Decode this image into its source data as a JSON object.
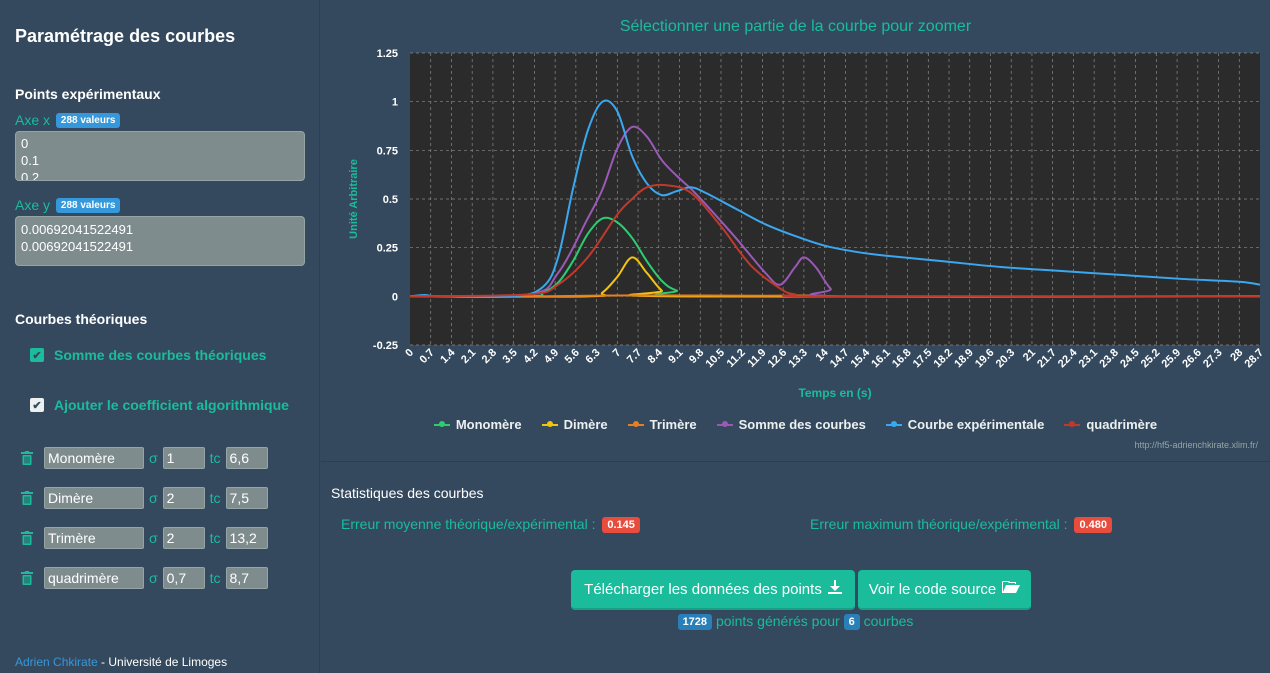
{
  "sidebar": {
    "title": "Paramétrage des courbes",
    "points_heading": "Points expérimentaux",
    "axis_x": {
      "label": "Axe x",
      "count_badge": "288 valeurs",
      "lines": [
        "0",
        "0.1",
        "0.2"
      ]
    },
    "axis_y": {
      "label": "Axe y",
      "count_badge": "288 valeurs",
      "lines": [
        "0.00692041522491",
        "0.00692041522491",
        "0.00692041522491"
      ]
    },
    "theory_heading": "Courbes théoriques",
    "sum_checkbox_label": "Somme des courbes théoriques",
    "coef_checkbox_label": "Ajouter le coefficient algorithmique",
    "sigma_symbol": "σ",
    "tc_symbol": "tc",
    "curves": [
      {
        "name": "Monomère",
        "sigma": "1",
        "tc": "6,6"
      },
      {
        "name": "Dimère",
        "sigma": "2",
        "tc": "7,5"
      },
      {
        "name": "Trimère",
        "sigma": "2",
        "tc": "13,2"
      },
      {
        "name": "quadrimère",
        "sigma": "0,7",
        "tc": "8,7"
      }
    ],
    "footer_author": "Adrien Chkirate",
    "footer_org": " - Université de Limoges"
  },
  "chart_title": "Sélectionner une partie de la courbe pour zoomer",
  "watermark": "http://hf5-adrienchkirate.xlim.fr/",
  "chart_data": {
    "type": "line",
    "xlabel": "Temps en (s)",
    "ylabel": "Unité Arbitraire",
    "xlim": [
      0,
      28.7
    ],
    "ylim": [
      -0.25,
      1.25
    ],
    "grid": true,
    "legend_position": "bottom",
    "y_ticks": [
      "-0.25",
      "0",
      "0.25",
      "0.5",
      "0.75",
      "1",
      "1.25"
    ],
    "x_ticks": [
      "0",
      "0.7",
      "1.4",
      "2.1",
      "2.8",
      "3.5",
      "4.2",
      "4.9",
      "5.6",
      "6.3",
      "7",
      "7.7",
      "8.4",
      "9.1",
      "9.8",
      "10.5",
      "11.2",
      "11.9",
      "12.6",
      "13.3",
      "14",
      "14.7",
      "15.4",
      "16.1",
      "16.8",
      "17.5",
      "18.2",
      "18.9",
      "19.6",
      "20.3",
      "21",
      "21.7",
      "22.4",
      "23.1",
      "23.8",
      "24.5",
      "25.2",
      "25.9",
      "26.6",
      "27.3",
      "28",
      "28.7"
    ],
    "series": [
      {
        "name": "Monomère",
        "color": "#2ecc71",
        "x": [
          0,
          4,
          4.5,
          5,
          5.5,
          6,
          6.5,
          7,
          7.5,
          8,
          8.5,
          9,
          10,
          28.7
        ],
        "y": [
          0,
          0,
          0.02,
          0.07,
          0.18,
          0.32,
          0.4,
          0.38,
          0.3,
          0.18,
          0.08,
          0.03,
          0,
          0
        ]
      },
      {
        "name": "Dimère",
        "color": "#f1c40f",
        "x": [
          0,
          6,
          6.5,
          7,
          7.5,
          8,
          8.5,
          9,
          28.7
        ],
        "y": [
          0,
          0,
          0.02,
          0.1,
          0.2,
          0.12,
          0.03,
          0,
          0
        ]
      },
      {
        "name": "Trimère",
        "color": "#e67e22",
        "x": [
          0,
          4,
          6,
          8,
          10,
          12,
          13.2,
          14,
          15,
          28.7
        ],
        "y": [
          0,
          0,
          0.003,
          0.005,
          0.004,
          0.003,
          0.004,
          0.003,
          0,
          0
        ]
      },
      {
        "name": "Somme des courbes",
        "color": "#9b59b6",
        "x": [
          0,
          4,
          5,
          6,
          6.5,
          7,
          7.5,
          8,
          8.5,
          9,
          9.5,
          10,
          11,
          12,
          12.5,
          13,
          13.3,
          13.7,
          14.2,
          14.7,
          28.7
        ],
        "y": [
          0,
          0.01,
          0.12,
          0.4,
          0.55,
          0.76,
          0.87,
          0.82,
          0.7,
          0.62,
          0.55,
          0.47,
          0.3,
          0.12,
          0.06,
          0.15,
          0.2,
          0.15,
          0.04,
          0,
          0
        ]
      },
      {
        "name": "Courbe expérimentale",
        "color": "#3aa8f0",
        "x": [
          0,
          0.5,
          1,
          3.5,
          4.5,
          5,
          5.5,
          6,
          6.5,
          7,
          7.5,
          8,
          8.5,
          9,
          9.5,
          10,
          11,
          12,
          13,
          14,
          15,
          16,
          18,
          20,
          22,
          24,
          26,
          28,
          28.7
        ],
        "y": [
          0,
          0.007,
          0,
          0,
          0.05,
          0.2,
          0.55,
          0.85,
          1.0,
          0.95,
          0.72,
          0.58,
          0.52,
          0.54,
          0.56,
          0.53,
          0.45,
          0.37,
          0.31,
          0.26,
          0.23,
          0.21,
          0.18,
          0.15,
          0.13,
          0.11,
          0.09,
          0.075,
          0.06
        ]
      },
      {
        "name": "quadrimère",
        "color": "#c0392b",
        "x": [
          0,
          4,
          5,
          6,
          7,
          7.5,
          8,
          8.7,
          9.5,
          10.5,
          11.5,
          12.5,
          13,
          14,
          28.7
        ],
        "y": [
          0,
          0.01,
          0.06,
          0.2,
          0.42,
          0.5,
          0.56,
          0.57,
          0.53,
          0.36,
          0.16,
          0.04,
          0.01,
          0,
          0
        ]
      }
    ]
  },
  "stats": {
    "title": "Statistiques des courbes",
    "mean_error_label": "Erreur moyenne théorique/expérimental :",
    "mean_error_value": "0.145",
    "max_error_label": "Erreur maximum théorique/expérimental :",
    "max_error_value": "0.480",
    "download_button": "Télécharger les données des points",
    "source_button": "Voir le code source",
    "points_count": "1728",
    "points_text": "points générés pour",
    "curves_count": "6",
    "curves_text": "courbes"
  }
}
